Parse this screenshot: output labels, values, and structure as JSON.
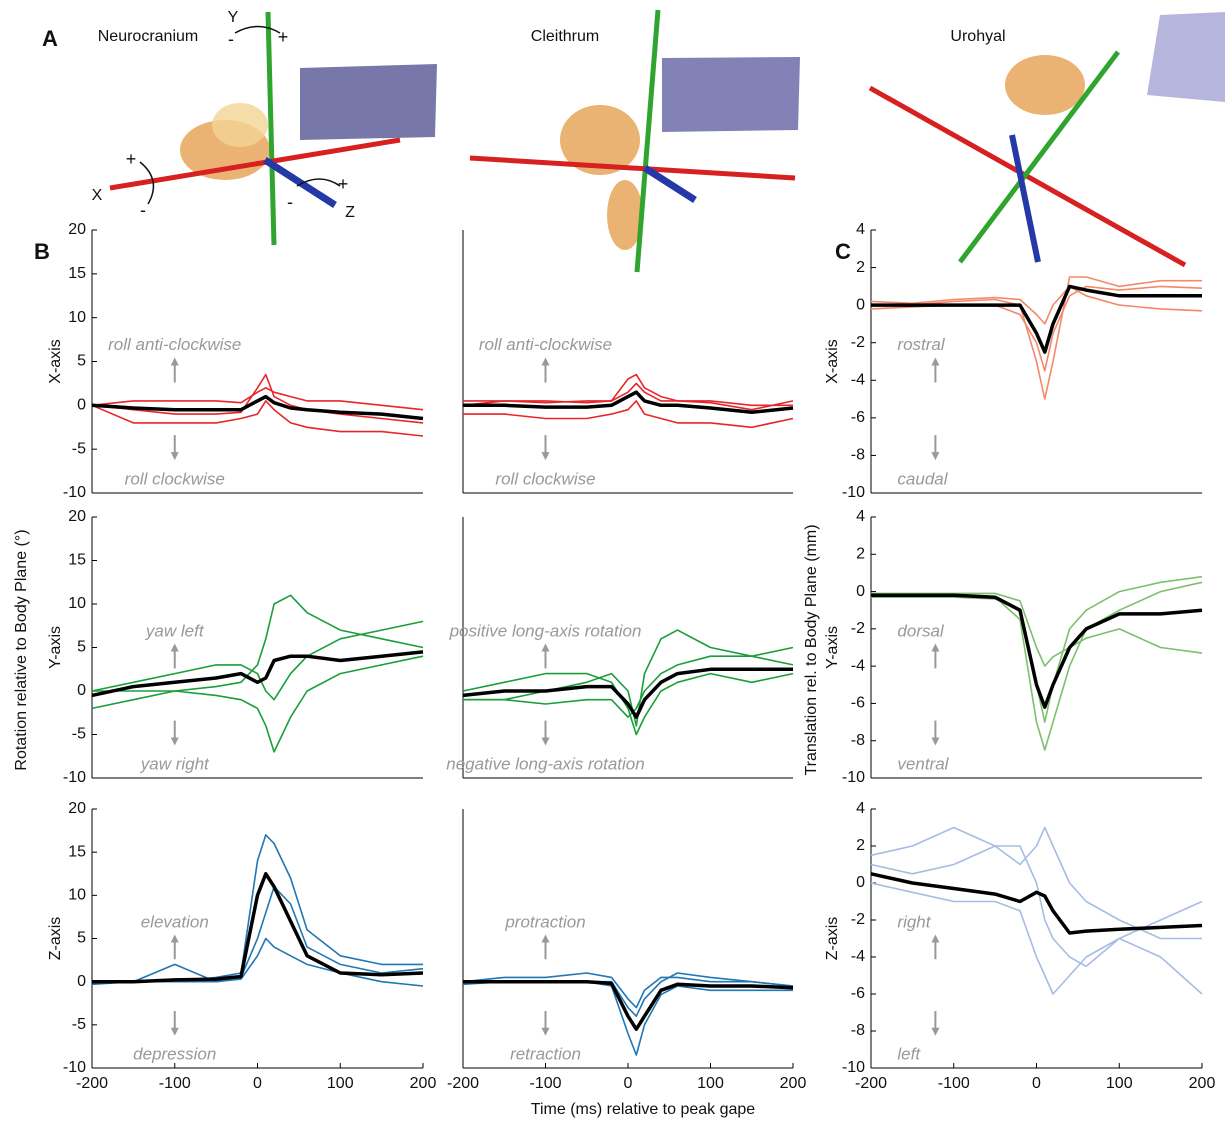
{
  "figure": {
    "panel_labels": [
      "A",
      "B",
      "C"
    ],
    "headers": [
      "Neurocranium",
      "Cleithrum",
      "Urohyal"
    ],
    "axis_letters": [
      "X",
      "Y",
      "Z"
    ],
    "signs": [
      "-",
      "+",
      "+",
      "-",
      "-",
      "+"
    ],
    "ylabel_left": "Rotation relative to Body Plane (°)",
    "ylabel_right": "Translation rel. to Body Plane (mm)",
    "xlabel": "Time (ms) relative to peak gape"
  },
  "chart_data": [
    {
      "type": "line",
      "ylabel": "X-axis",
      "annotations": [
        "roll anti-clockwise",
        "roll clockwise"
      ],
      "x": [
        -200,
        -150,
        -100,
        -50,
        -20,
        0,
        10,
        20,
        40,
        60,
        100,
        150,
        200
      ],
      "xlim": [
        -200,
        200
      ],
      "ylim": [
        -10,
        20
      ],
      "yticks": [
        -10,
        -5,
        0,
        5,
        10,
        15,
        20
      ],
      "series": [
        {
          "color": "#e8262a",
          "values": [
            0,
            -0.5,
            -1,
            -1,
            -0.8,
            2,
            3.5,
            1,
            0,
            -0.5,
            -1,
            -1.5,
            -2
          ]
        },
        {
          "color": "#e8262a",
          "values": [
            0,
            -2,
            -2,
            -2,
            -1.5,
            -1,
            0.5,
            -0.5,
            -2,
            -2.5,
            -3,
            -3,
            -3.5
          ]
        },
        {
          "color": "#e8262a",
          "values": [
            0,
            0.5,
            0.5,
            0.5,
            0.3,
            1.5,
            2,
            1.5,
            1,
            0.5,
            0.5,
            0,
            -0.5
          ]
        },
        {
          "color": "#000000",
          "values": [
            0,
            -0.3,
            -0.5,
            -0.5,
            -0.5,
            0.5,
            1,
            0.3,
            -0.3,
            -0.5,
            -0.8,
            -1,
            -1.5
          ]
        }
      ]
    },
    {
      "type": "line",
      "ylabel": "Y-axis",
      "annotations": [
        "yaw left",
        "yaw right"
      ],
      "x": [
        -200,
        -150,
        -100,
        -50,
        -20,
        0,
        10,
        20,
        40,
        60,
        100,
        150,
        200
      ],
      "xlim": [
        -200,
        200
      ],
      "ylim": [
        -10,
        20
      ],
      "yticks": [
        -10,
        -5,
        0,
        5,
        10,
        15,
        20
      ],
      "series": [
        {
          "color": "#1a9e3a",
          "values": [
            -2,
            -1,
            0,
            0.5,
            1,
            3,
            6,
            10,
            11,
            9,
            7,
            6,
            5
          ]
        },
        {
          "color": "#1a9e3a",
          "values": [
            0,
            0,
            0,
            -0.5,
            -1,
            -2,
            -4,
            -7,
            -3,
            0,
            2,
            3,
            4
          ]
        },
        {
          "color": "#1a9e3a",
          "values": [
            0,
            1,
            2,
            3,
            3,
            2,
            0,
            -1,
            2,
            4,
            6,
            7,
            8
          ]
        },
        {
          "color": "#000000",
          "values": [
            -0.5,
            0.5,
            1,
            1.5,
            2,
            1,
            1.5,
            3.5,
            4,
            4,
            3.5,
            4,
            4.5
          ]
        }
      ]
    },
    {
      "type": "line",
      "ylabel": "Z-axis",
      "annotations": [
        "elevation",
        "depression"
      ],
      "x": [
        -200,
        -150,
        -100,
        -50,
        -20,
        0,
        10,
        20,
        40,
        60,
        100,
        150,
        200
      ],
      "xlim": [
        -200,
        200
      ],
      "ylim": [
        -10,
        20
      ],
      "yticks": [
        -10,
        -5,
        0,
        5,
        10,
        15,
        20
      ],
      "xticks": [
        -200,
        -100,
        0,
        100,
        200
      ],
      "series": [
        {
          "color": "#1f77b4",
          "values": [
            0,
            0,
            0,
            0.5,
            1,
            14,
            17,
            16,
            12,
            6,
            3,
            2,
            2
          ]
        },
        {
          "color": "#1f77b4",
          "values": [
            0,
            0,
            2,
            0,
            0.5,
            5,
            8,
            11,
            9,
            4,
            2,
            1,
            1.5
          ]
        },
        {
          "color": "#1f77b4",
          "values": [
            -0.3,
            0,
            0,
            0,
            0.3,
            3,
            5,
            4,
            3,
            2,
            1,
            0,
            -0.5
          ]
        },
        {
          "color": "#000000",
          "values": [
            0,
            0,
            0.2,
            0.3,
            0.6,
            10,
            12.5,
            11,
            7,
            3,
            1,
            0.8,
            1
          ]
        }
      ]
    },
    {
      "type": "line",
      "annotations": [
        "roll anti-clockwise",
        "roll clockwise"
      ],
      "x": [
        -200,
        -150,
        -100,
        -50,
        -20,
        0,
        10,
        20,
        40,
        60,
        100,
        150,
        200
      ],
      "xlim": [
        -200,
        200
      ],
      "ylim": [
        -10,
        20
      ],
      "series": [
        {
          "color": "#e8262a",
          "values": [
            0,
            0.5,
            0.3,
            0.5,
            0.5,
            3,
            3.5,
            2,
            1,
            0.5,
            0.5,
            0,
            0
          ]
        },
        {
          "color": "#e8262a",
          "values": [
            -1,
            -1,
            -1.5,
            -1.5,
            -1,
            -0.5,
            0.5,
            -1,
            -1.5,
            -2,
            -2,
            -2.5,
            -1.5
          ]
        },
        {
          "color": "#e8262a",
          "values": [
            0.5,
            0.5,
            0.5,
            0.3,
            0.5,
            1.5,
            2.5,
            1.5,
            0.5,
            0.5,
            0.3,
            -0.5,
            0.5
          ]
        },
        {
          "color": "#000000",
          "values": [
            0,
            0,
            -0.2,
            -0.2,
            0,
            1,
            1.5,
            0.5,
            0,
            0,
            -0.3,
            -0.8,
            -0.3
          ]
        }
      ]
    },
    {
      "type": "line",
      "annotations": [
        "positive long-axis rotation",
        "negative long-axis rotation"
      ],
      "x": [
        -200,
        -150,
        -100,
        -50,
        -20,
        0,
        10,
        20,
        40,
        60,
        100,
        150,
        200
      ],
      "xlim": [
        -200,
        200
      ],
      "ylim": [
        -10,
        20
      ],
      "series": [
        {
          "color": "#1a9e3a",
          "values": [
            -1,
            -1,
            0,
            1,
            2,
            0,
            -4,
            2,
            6,
            7,
            5,
            4,
            5
          ]
        },
        {
          "color": "#1a9e3a",
          "values": [
            0,
            1,
            2,
            2,
            1,
            -2,
            -5,
            -3,
            0,
            1,
            2,
            1,
            2
          ]
        },
        {
          "color": "#1a9e3a",
          "values": [
            -1,
            -1,
            -1.5,
            -1,
            -1,
            -3,
            -2,
            0,
            2,
            3,
            4,
            4,
            3
          ]
        },
        {
          "color": "#000000",
          "values": [
            -0.5,
            0,
            0,
            0.5,
            0.5,
            -1.5,
            -3,
            -1,
            1,
            2,
            2.5,
            2.5,
            2.5
          ]
        }
      ]
    },
    {
      "type": "line",
      "annotations": [
        "protraction",
        "retraction"
      ],
      "x": [
        -200,
        -150,
        -100,
        -50,
        -20,
        0,
        10,
        20,
        40,
        60,
        100,
        150,
        200
      ],
      "xlim": [
        -200,
        200
      ],
      "ylim": [
        -10,
        20
      ],
      "xticks": [
        -200,
        -100,
        0,
        100,
        200
      ],
      "series": [
        {
          "color": "#1f77b4",
          "values": [
            0,
            0.5,
            0.5,
            1,
            0.5,
            -2,
            -3,
            -1,
            0.5,
            0.5,
            0,
            0,
            -0.5
          ]
        },
        {
          "color": "#1f77b4",
          "values": [
            0,
            0,
            0,
            0,
            -0.5,
            -6,
            -8.5,
            -5,
            -1.5,
            -0.5,
            -1,
            -1,
            -1
          ]
        },
        {
          "color": "#1f77b4",
          "values": [
            -0.3,
            0,
            0,
            0,
            0,
            -3,
            -4,
            -2,
            0,
            1,
            0.5,
            0,
            -0.5
          ]
        },
        {
          "color": "#000000",
          "values": [
            0,
            0,
            0,
            0,
            -0.2,
            -4,
            -5.5,
            -4,
            -1,
            -0.3,
            -0.5,
            -0.5,
            -0.7
          ]
        }
      ]
    },
    {
      "type": "line",
      "ylabel": "X-axis",
      "annotations": [
        "rostral",
        "caudal"
      ],
      "x": [
        -200,
        -150,
        -100,
        -50,
        -20,
        0,
        10,
        20,
        40,
        60,
        100,
        150,
        200
      ],
      "xlim": [
        -200,
        200
      ],
      "ylim": [
        -10,
        4
      ],
      "yticks": [
        -10,
        -8,
        -6,
        -4,
        -2,
        0,
        2,
        4
      ],
      "series": [
        {
          "color": "#f4886a",
          "values": [
            0,
            0,
            0.2,
            0.3,
            0,
            -3,
            -5,
            -3,
            1.5,
            1.5,
            1,
            1.3,
            1.3
          ]
        },
        {
          "color": "#f4886a",
          "values": [
            0.2,
            0.1,
            0.3,
            0.4,
            0.3,
            -0.5,
            -1,
            0,
            1,
            0.5,
            0,
            -0.2,
            -0.3
          ]
        },
        {
          "color": "#f4886a",
          "values": [
            -0.2,
            -0.1,
            0,
            0,
            -0.5,
            -2,
            -3.5,
            -1.5,
            0.5,
            1,
            0.8,
            1,
            0.9
          ]
        },
        {
          "color": "#000000",
          "values": [
            0,
            0,
            0,
            0,
            0,
            -1.5,
            -2.5,
            -1,
            1,
            0.8,
            0.5,
            0.5,
            0.5
          ]
        }
      ]
    },
    {
      "type": "line",
      "ylabel": "Y-axis",
      "annotations": [
        "dorsal",
        "ventral"
      ],
      "x": [
        -200,
        -150,
        -100,
        -50,
        -20,
        0,
        10,
        20,
        40,
        60,
        100,
        150,
        200
      ],
      "xlim": [
        -200,
        200
      ],
      "ylim": [
        -10,
        4
      ],
      "yticks": [
        -10,
        -8,
        -6,
        -4,
        -2,
        0,
        2,
        4
      ],
      "series": [
        {
          "color": "#7dbf6e",
          "values": [
            -0.2,
            -0.2,
            -0.2,
            -0.3,
            -1.5,
            -7,
            -8.5,
            -7,
            -4,
            -2,
            -1,
            0,
            0.5
          ]
        },
        {
          "color": "#7dbf6e",
          "values": [
            -0.1,
            -0.1,
            -0.1,
            -0.1,
            -0.5,
            -3,
            -4,
            -3.5,
            -3,
            -2.5,
            -2,
            -3,
            -3.3
          ]
        },
        {
          "color": "#7dbf6e",
          "values": [
            -0.3,
            -0.3,
            -0.3,
            -0.4,
            -1,
            -5,
            -7,
            -5,
            -2,
            -1,
            0,
            0.5,
            0.8
          ]
        },
        {
          "color": "#000000",
          "values": [
            -0.2,
            -0.2,
            -0.2,
            -0.3,
            -1,
            -5,
            -6.2,
            -5,
            -3,
            -2,
            -1.2,
            -1.2,
            -1
          ]
        }
      ]
    },
    {
      "type": "line",
      "ylabel": "Z-axis",
      "annotations": [
        "right",
        "left"
      ],
      "x": [
        -200,
        -150,
        -100,
        -50,
        -20,
        0,
        10,
        20,
        40,
        60,
        100,
        150,
        200
      ],
      "xlim": [
        -200,
        200
      ],
      "ylim": [
        -10,
        4
      ],
      "yticks": [
        -10,
        -8,
        -6,
        -4,
        -2,
        0,
        2,
        4
      ],
      "xticks": [
        -200,
        -100,
        0,
        100,
        200
      ],
      "series": [
        {
          "color": "#a6bde3",
          "values": [
            1.5,
            2,
            3,
            2,
            1,
            2,
            3,
            2,
            0,
            -1,
            -2,
            -3,
            -3
          ]
        },
        {
          "color": "#a6bde3",
          "values": [
            0,
            -0.5,
            -1,
            -1,
            -1.5,
            -4,
            -5,
            -6,
            -5,
            -4,
            -3,
            -4,
            -6
          ]
        },
        {
          "color": "#a6bde3",
          "values": [
            1,
            0.5,
            1,
            2,
            2,
            0,
            -2,
            -3,
            -4,
            -4.5,
            -3,
            -2,
            -1
          ]
        },
        {
          "color": "#000000",
          "values": [
            0.5,
            0,
            -0.3,
            -0.6,
            -1,
            -0.5,
            -0.7,
            -1.5,
            -2.7,
            -2.6,
            -2.5,
            -2.4,
            -2.3
          ]
        }
      ]
    }
  ]
}
